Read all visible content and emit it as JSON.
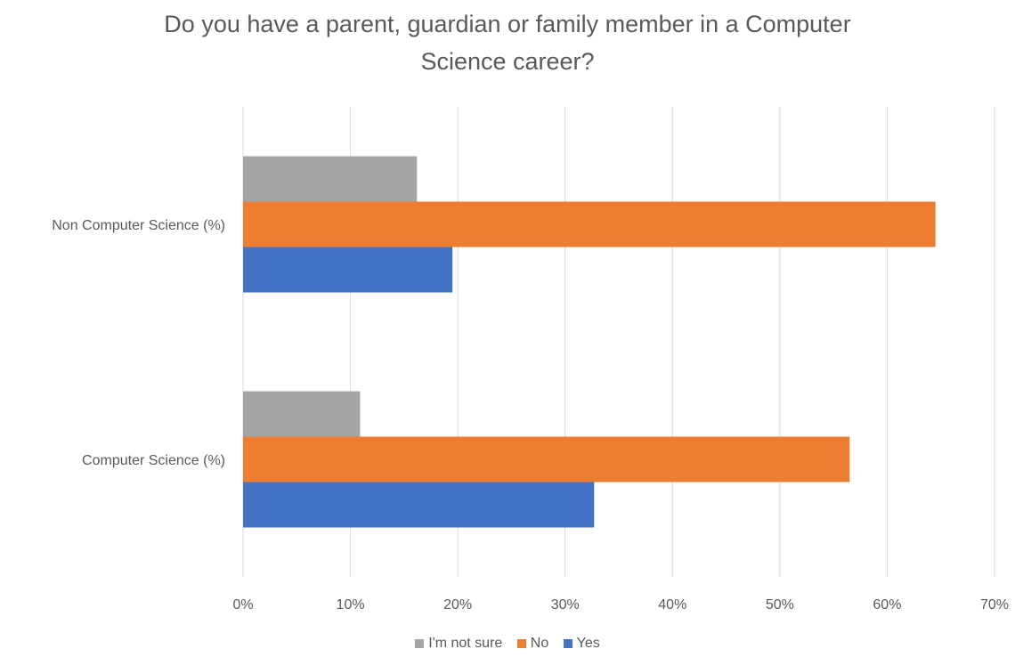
{
  "chart_data": {
    "type": "bar",
    "orientation": "horizontal",
    "title_line1": "Do you have a parent, guardian or family member in a Computer",
    "title_line2": "Science career?",
    "categories": [
      "Non Computer Science (%)",
      "Computer Science (%)"
    ],
    "series": [
      {
        "name": "I'm not sure",
        "color": "#a5a5a5",
        "values": [
          16.2,
          10.9
        ]
      },
      {
        "name": "No",
        "color": "#ed7d31",
        "values": [
          64.5,
          56.5
        ]
      },
      {
        "name": "Yes",
        "color": "#4472c4",
        "values": [
          19.5,
          32.7
        ]
      }
    ],
    "xlim": [
      0,
      70
    ],
    "xticks": [
      "0%",
      "10%",
      "20%",
      "30%",
      "40%",
      "50%",
      "60%",
      "70%"
    ],
    "grid": true,
    "legend_position": "bottom"
  }
}
